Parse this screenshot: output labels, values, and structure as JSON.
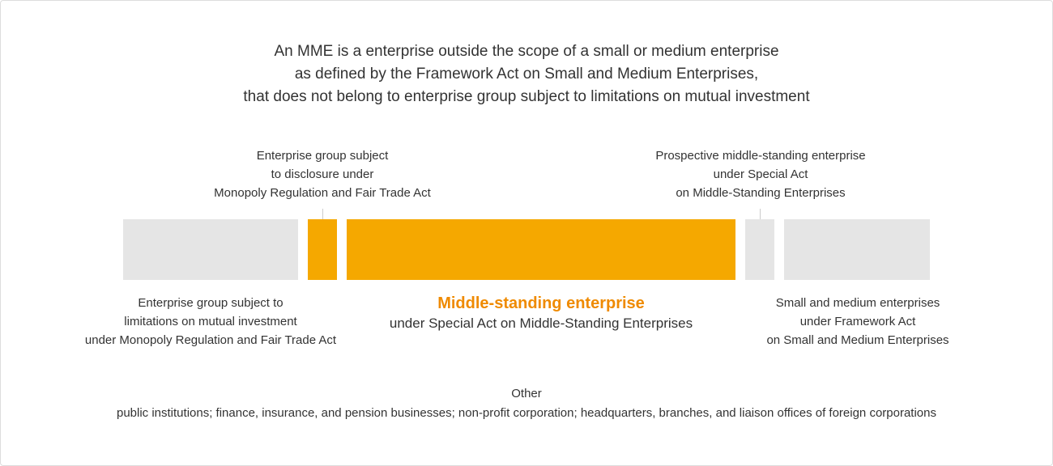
{
  "headline": {
    "line1": "An MME is a enterprise outside the scope of a small or medium enterprise",
    "line2": "as defined by the Framework Act on Small and Medium Enterprises,",
    "line3": "that does not belong to enterprise group subject to limitations on mutual investment"
  },
  "top_labels": {
    "disclosure_group": {
      "line1": "Enterprise group subject",
      "line2": "to disclosure under",
      "line3": "Monopoly Regulation and Fair Trade Act"
    },
    "prospective": {
      "line1": "Prospective middle-standing enterprise",
      "line2": "under Special Act",
      "line3": "on Middle-Standing Enterprises"
    }
  },
  "bottom_labels": {
    "mutual_investment_group": {
      "line1": "Enterprise group subject to",
      "line2": "limitations on mutual investment",
      "line3": "under Monopoly Regulation and Fair Trade Act"
    },
    "middle_standing": {
      "title": "Middle-standing enterprise",
      "subtitle": "under Special Act on Middle-Standing Enterprises"
    },
    "sme": {
      "line1": "Small and medium enterprises",
      "line2": "under Framework Act",
      "line3": "on Small and Medium Enterprises"
    }
  },
  "other": {
    "title": "Other",
    "body": "public institutions; finance, insurance, and pension businesses; non-profit corporation; headquarters, branches, and liaison offices of foreign corporations"
  },
  "colors": {
    "orange_bar": "#f5a800",
    "orange_text": "#ef8a00",
    "gray_bar": "#e5e5e5",
    "text": "#333333"
  }
}
